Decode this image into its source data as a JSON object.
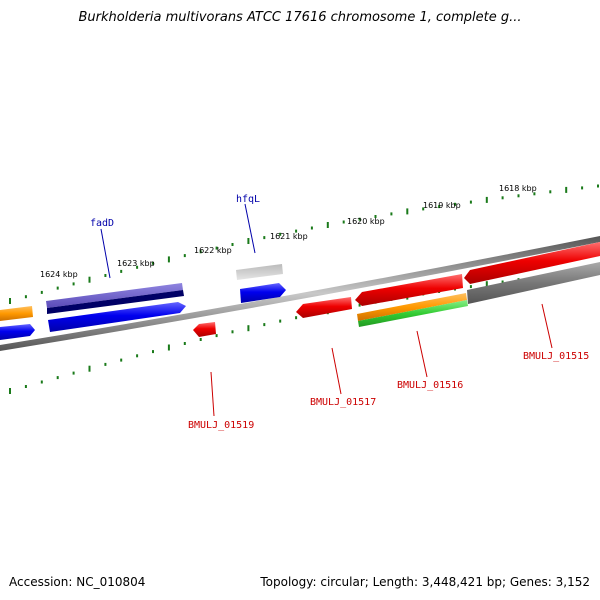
{
  "title": "Burkholderia multivorans ATCC 17616 chromosome 1, complete g...",
  "footer": {
    "accession": "Accession: NC_010804",
    "topology": "Topology: circular; Length: 3,448,421 bp; Genes: 3,152"
  },
  "scale_labels": [
    "1618 kbp",
    "1619 kbp",
    "1620 kbp",
    "1621 kbp",
    "1622 kbp",
    "1623 kbp",
    "1624 kbp"
  ],
  "gene_labels": {
    "fadD": "fadD",
    "hfqL": "hfqL",
    "bmulj_01519": "BMULJ_01519",
    "bmulj_01517": "BMULJ_01517",
    "bmulj_01516": "BMULJ_01516",
    "bmulj_01515": "BMULJ_01515"
  },
  "colors": {
    "forward_gene": "#0000ee",
    "reverse_gene": "#ee0000",
    "forward_label": "#0000aa",
    "reverse_label": "#cc0000",
    "scale_ticks": "#1a7a1a",
    "backbone": "#8a8a8a",
    "orange_feature": "#ff9900",
    "green_feature": "#33cc33",
    "gray_feature": "#777777",
    "purple_feature": "#6a5acd",
    "navy_feature": "#000066"
  }
}
